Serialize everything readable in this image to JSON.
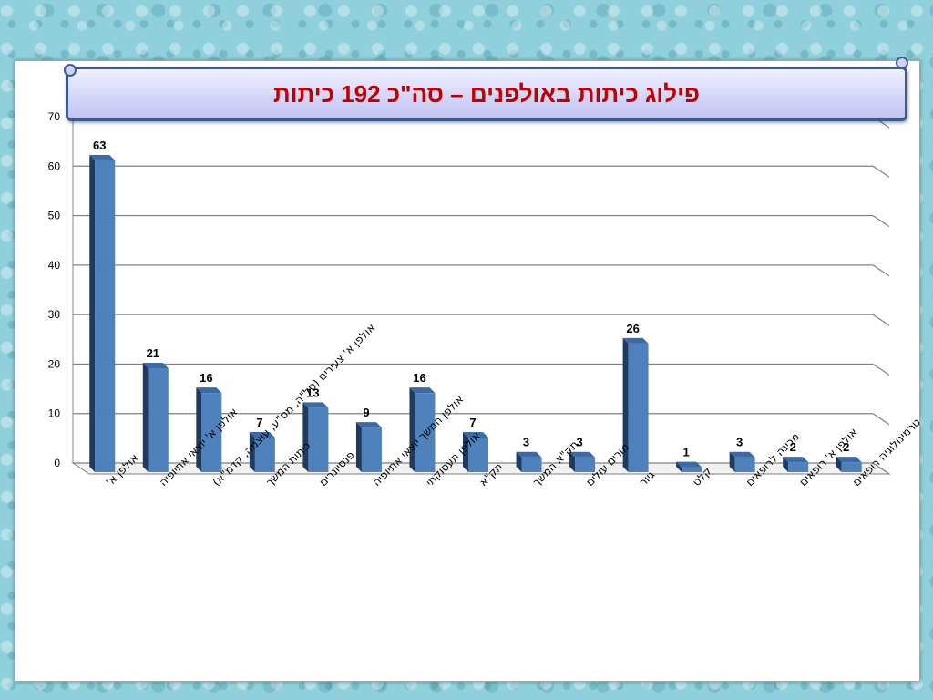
{
  "colors": {
    "bar_front": "#4f81bd",
    "bar_side": "#1f3a5f",
    "bar_top": "#3b6aa5",
    "title_text": "#c00000",
    "grid": "#808080"
  },
  "chart_data": {
    "type": "bar",
    "title": "פילוג כיתות באולפנים – סה\"כ 192 כיתות",
    "ylim": [
      0,
      70
    ],
    "yticks": [
      0,
      10,
      20,
      30,
      40,
      50,
      60,
      70
    ],
    "grid": true,
    "categories": [
      "אולפן א'",
      "אולפן א' יוצאי אתיופיה",
      "אולפן א' צעירים (סל\"ה, מס\"ע, עוצמה, קדמ\"א)",
      "כיתות המשך",
      "פנסיונרים",
      "אולפן המשך יוצאי אתיופיה",
      "אולפן תעסוקתי",
      "תק\"א",
      "תק\"א המשך",
      "מורים עולים",
      "גיור",
      "קלט",
      "מכינה לרופאים",
      "אולפן א' רופאים",
      "טרמינולוגיה רופאים"
    ],
    "values": [
      63,
      21,
      16,
      7,
      13,
      9,
      16,
      7,
      3,
      3,
      26,
      1,
      3,
      2,
      2
    ]
  }
}
